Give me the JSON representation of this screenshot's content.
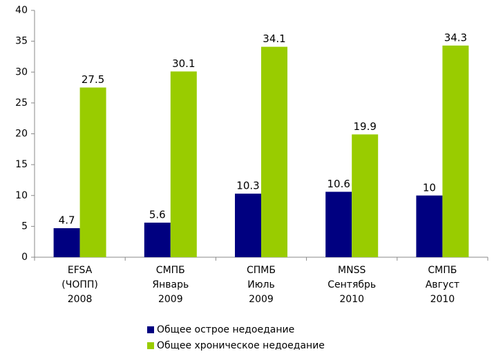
{
  "chart_data": {
    "type": "bar",
    "categories": [
      [
        "EFSA",
        "(ЧОПП)",
        "2008"
      ],
      [
        "СМПБ",
        "Январь",
        "2009"
      ],
      [
        "СПМБ",
        "Июль",
        "2009"
      ],
      [
        "MNSS",
        "Сентябрь",
        "2010"
      ],
      [
        "СМПБ",
        "Август",
        "2010"
      ]
    ],
    "series": [
      {
        "name": "Общее острое недоедание",
        "color": "#000080",
        "values": [
          4.7,
          5.6,
          10.3,
          10.6,
          10
        ]
      },
      {
        "name": "Общее хроническое недоедание",
        "color": "#99cc00",
        "values": [
          27.5,
          30.1,
          34.1,
          19.9,
          34.3
        ]
      }
    ],
    "ylim": [
      0,
      40
    ],
    "yticks": [
      0,
      5,
      10,
      15,
      20,
      25,
      30,
      35,
      40
    ]
  }
}
